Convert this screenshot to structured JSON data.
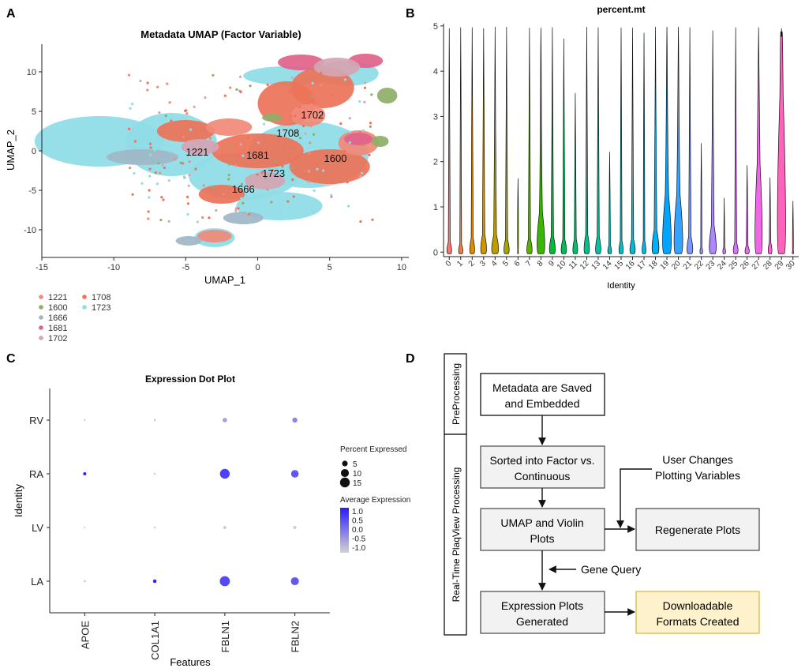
{
  "panels": {
    "A": {
      "letter": "A",
      "chart_data": {
        "type": "scatter",
        "title": "Metadata UMAP (Factor Variable)",
        "xlabel": "UMAP_1",
        "ylabel": "UMAP_2",
        "xlim": [
          -15,
          10.5
        ],
        "ylim": [
          -13.5,
          13.5
        ],
        "xticks": [
          -15,
          -10,
          -5,
          0,
          5,
          10
        ],
        "yticks": [
          -10,
          -5,
          0,
          5,
          10
        ],
        "series": [
          {
            "name": "1221",
            "color": "#f08a7a"
          },
          {
            "name": "1600",
            "color": "#8fae6a"
          },
          {
            "name": "1666",
            "color": "#9fb7c6"
          },
          {
            "name": "1681",
            "color": "#e0638c"
          },
          {
            "name": "1702",
            "color": "#d4a5b3"
          },
          {
            "name": "1708",
            "color": "#ec7358"
          },
          {
            "name": "1723",
            "color": "#8fdde6"
          }
        ],
        "cluster_labels": [
          {
            "label": "1702",
            "x": 3.8,
            "y": 4.1
          },
          {
            "label": "1708",
            "x": 2.1,
            "y": 1.8
          },
          {
            "label": "1221",
            "x": -4.2,
            "y": -0.6
          },
          {
            "label": "1681",
            "x": 0.0,
            "y": -1.0
          },
          {
            "label": "1600",
            "x": 5.4,
            "y": -1.4
          },
          {
            "label": "1723",
            "x": 1.1,
            "y": -3.3
          },
          {
            "label": "1666",
            "x": -1.0,
            "y": -5.3
          }
        ]
      }
    },
    "B": {
      "letter": "B",
      "chart_data": {
        "type": "violin",
        "title": "percent.mt",
        "xlabel": "Identity",
        "ylabel": "",
        "ylim": [
          -0.1,
          5.05
        ],
        "yticks": [
          0,
          1,
          2,
          3,
          4,
          5
        ],
        "categories": [
          "0",
          "1",
          "2",
          "3",
          "4",
          "5",
          "6",
          "7",
          "8",
          "9",
          "10",
          "11",
          "12",
          "13",
          "14",
          "15",
          "16",
          "17",
          "18",
          "19",
          "20",
          "21",
          "22",
          "23",
          "24",
          "25",
          "26",
          "27",
          "28",
          "29",
          "30"
        ],
        "max_values": [
          4.95,
          4.97,
          4.97,
          4.95,
          4.98,
          4.98,
          1.63,
          4.96,
          4.96,
          4.97,
          4.72,
          3.52,
          4.98,
          4.97,
          2.22,
          4.96,
          4.96,
          4.85,
          4.98,
          4.98,
          4.98,
          4.97,
          2.41,
          4.9,
          1.2,
          4.97,
          1.92,
          4.97,
          1.65,
          4.95,
          1.13
        ],
        "peak_heights": [
          0.32,
          0.25,
          0.45,
          0.55,
          0.55,
          0.4,
          0.05,
          0.42,
          1.25,
          0.5,
          0.4,
          0.42,
          0.55,
          0.5,
          0.22,
          0.35,
          0.4,
          0.35,
          0.7,
          1.8,
          1.8,
          0.5,
          0.15,
          0.85,
          0.15,
          0.3,
          0.2,
          2.8,
          0.3,
          4.95,
          0.05
        ],
        "widths": [
          0.5,
          0.45,
          0.5,
          0.6,
          0.7,
          0.55,
          0.1,
          0.55,
          0.8,
          0.6,
          0.55,
          0.5,
          0.55,
          0.55,
          0.4,
          0.45,
          0.55,
          0.4,
          0.7,
          0.9,
          0.9,
          0.6,
          0.3,
          0.7,
          0.3,
          0.5,
          0.45,
          0.75,
          0.4,
          0.85,
          0.15
        ],
        "colors": [
          "#f8766d",
          "#f07f3a",
          "#e08b00",
          "#cf9400",
          "#bb9d00",
          "#a3a500",
          "#85ad00",
          "#5bb300",
          "#39b600",
          "#00ba38",
          "#00bc59",
          "#00be72",
          "#00c08b",
          "#00c1a3",
          "#00c0b8",
          "#00bfc4",
          "#00bcd8",
          "#00b6eb",
          "#00b0f6",
          "#00a5ff",
          "#35a2ff",
          "#7997ff",
          "#9590ff",
          "#ae87ff",
          "#c77cff",
          "#db72fb",
          "#e76bf3",
          "#f265e7",
          "#fb61d7",
          "#ff62bc",
          "#ff6c91"
        ]
      }
    },
    "C": {
      "letter": "C",
      "chart_data": {
        "type": "dotplot",
        "title": "Expression Dot Plot",
        "xlabel": "Features",
        "ylabel": "Identity",
        "features": [
          "APOE",
          "COL1A1",
          "FBLN1",
          "FBLN2"
        ],
        "identities": [
          "RV",
          "RA",
          "LV",
          "LA"
        ],
        "percent_expressed": [
          [
            0.3,
            0.3,
            3.0,
            4.0
          ],
          [
            1.5,
            0.3,
            15.0,
            9.0
          ],
          [
            0.3,
            0.3,
            1.5,
            1.5
          ],
          [
            0.3,
            2.0,
            16.0,
            10.0
          ]
        ],
        "average_expression": [
          [
            -1.0,
            -0.7,
            -0.3,
            0.0
          ],
          [
            1.4,
            -0.9,
            0.9,
            0.6
          ],
          [
            -1.0,
            -0.9,
            -0.9,
            -0.9
          ],
          [
            -0.7,
            1.3,
            0.8,
            0.6
          ]
        ],
        "legend_size": {
          "title": "Percent Expressed",
          "labels": [
            "5",
            "10",
            "15"
          ],
          "values": [
            5,
            10,
            15
          ]
        },
        "legend_color": {
          "title": "Average Expression",
          "labels": [
            "1.0",
            "0.5",
            "0.0",
            "-0.5",
            "-1.0"
          ],
          "values": [
            1.0,
            0.5,
            0.0,
            -0.5,
            -1.0
          ],
          "low": "#d3d3d3",
          "high": "#2a1bff"
        }
      }
    },
    "D": {
      "letter": "D",
      "phase_preprocessing": "PreProcessing",
      "phase_realtime": "Real-Time PlaqView Processing",
      "box_metadata": [
        "Metadata are Saved",
        "and Embedded"
      ],
      "box_sorted": [
        "Sorted into Factor vs.",
        "Continuous"
      ],
      "box_umap": [
        "UMAP and Violin",
        "Plots"
      ],
      "box_regenerate": [
        "Regenerate Plots"
      ],
      "box_expression": [
        "Expression Plots",
        "Generated"
      ],
      "box_downloadable": [
        "Downloadable",
        "Formats Created"
      ],
      "user_changes": [
        "User Changes",
        "Plotting Variables"
      ],
      "gene_query": "Gene Query"
    }
  }
}
